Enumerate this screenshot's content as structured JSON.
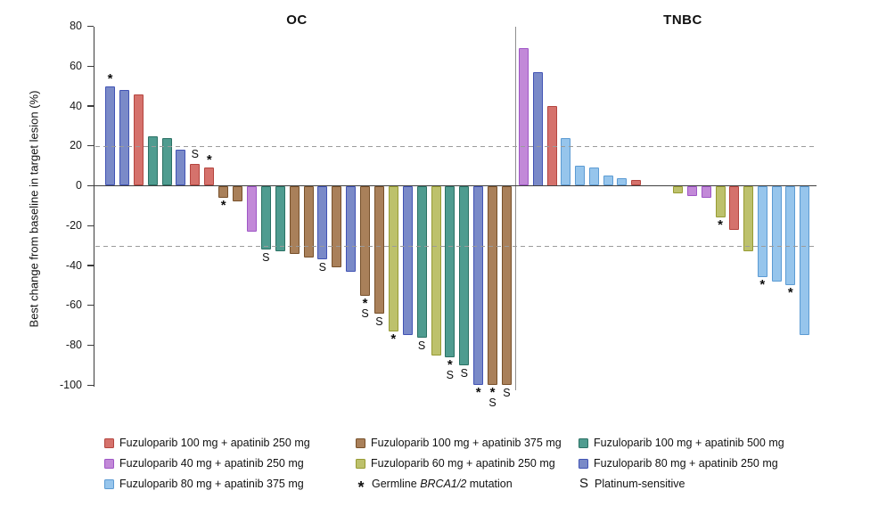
{
  "colors": {
    "fuzu100_apa250": {
      "fill": "#D5726C",
      "border": "#B4453F"
    },
    "fuzu100_apa375": {
      "fill": "#A9805A",
      "border": "#77502A"
    },
    "fuzu100_apa500": {
      "fill": "#4F9C90",
      "border": "#2B7164"
    },
    "fuzu40_apa250": {
      "fill": "#C289D8",
      "border": "#9F56C6"
    },
    "fuzu60_apa250": {
      "fill": "#BDC16C",
      "border": "#979B33"
    },
    "fuzu80_apa250": {
      "fill": "#7A8AC8",
      "border": "#4153B4"
    },
    "fuzu80_apa375": {
      "fill": "#96C5EC",
      "border": "#5C9BD3"
    }
  },
  "chart_data": {
    "type": "bar",
    "title": "",
    "ylabel": "Best change from baseline in target lesion (%)",
    "ylim": [
      -100,
      80
    ],
    "yticks": [
      80,
      60,
      40,
      20,
      0,
      -20,
      -40,
      -60,
      -80,
      -100
    ],
    "reference_lines": [
      20,
      -30
    ],
    "grid": false,
    "marker_meanings": {
      "*": "Germline BRCA1/2 mutation",
      "S": "Platinum-sensitive"
    },
    "panels": [
      {
        "label": "OC",
        "bars": [
          {
            "value": 50,
            "group": "fuzu80_apa250",
            "mark": "*"
          },
          {
            "value": 48,
            "group": "fuzu80_apa250"
          },
          {
            "value": 46,
            "group": "fuzu100_apa250"
          },
          {
            "value": 25,
            "group": "fuzu100_apa500"
          },
          {
            "value": 24,
            "group": "fuzu100_apa500"
          },
          {
            "value": 18,
            "group": "fuzu80_apa250"
          },
          {
            "value": 11,
            "group": "fuzu100_apa250",
            "mark": "S"
          },
          {
            "value": 9,
            "group": "fuzu100_apa250",
            "mark": "*"
          },
          {
            "value": -6,
            "group": "fuzu100_apa375",
            "mark": "*"
          },
          {
            "value": -8,
            "group": "fuzu100_apa375"
          },
          {
            "value": -23,
            "group": "fuzu40_apa250"
          },
          {
            "value": -32,
            "group": "fuzu100_apa500",
            "mark": "S"
          },
          {
            "value": -33,
            "group": "fuzu100_apa500"
          },
          {
            "value": -34,
            "group": "fuzu100_apa375"
          },
          {
            "value": -36,
            "group": "fuzu100_apa375"
          },
          {
            "value": -37,
            "group": "fuzu80_apa250",
            "mark": "S"
          },
          {
            "value": -41,
            "group": "fuzu100_apa375"
          },
          {
            "value": -43,
            "group": "fuzu80_apa250"
          },
          {
            "value": -55,
            "group": "fuzu100_apa375",
            "mark": "*S"
          },
          {
            "value": -64,
            "group": "fuzu100_apa375",
            "mark": "S"
          },
          {
            "value": -73,
            "group": "fuzu60_apa250",
            "mark": "*"
          },
          {
            "value": -75,
            "group": "fuzu80_apa250"
          },
          {
            "value": -76,
            "group": "fuzu100_apa500",
            "mark": "S"
          },
          {
            "value": -85,
            "group": "fuzu60_apa250"
          },
          {
            "value": -86,
            "group": "fuzu100_apa500",
            "mark": "*S"
          },
          {
            "value": -90,
            "group": "fuzu100_apa500",
            "mark": "S"
          },
          {
            "value": -100,
            "group": "fuzu80_apa250",
            "mark": "*"
          },
          {
            "value": -100,
            "group": "fuzu100_apa375",
            "mark": "*S"
          },
          {
            "value": -100,
            "group": "fuzu100_apa375",
            "mark": "S"
          }
        ]
      },
      {
        "label": "TNBC",
        "bars": [
          {
            "value": 69,
            "group": "fuzu40_apa250"
          },
          {
            "value": 57,
            "group": "fuzu80_apa250"
          },
          {
            "value": 40,
            "group": "fuzu100_apa250"
          },
          {
            "value": 24,
            "group": "fuzu80_apa375"
          },
          {
            "value": 10,
            "group": "fuzu80_apa375"
          },
          {
            "value": 9,
            "group": "fuzu80_apa375"
          },
          {
            "value": 5,
            "group": "fuzu80_apa375"
          },
          {
            "value": 4,
            "group": "fuzu80_apa375"
          },
          {
            "value": 3,
            "group": "fuzu100_apa250"
          },
          {
            "value": 0,
            "group": null
          },
          {
            "value": 0,
            "group": null
          },
          {
            "value": -4,
            "group": "fuzu60_apa250"
          },
          {
            "value": -5,
            "group": "fuzu40_apa250"
          },
          {
            "value": -6,
            "group": "fuzu40_apa250"
          },
          {
            "value": -16,
            "group": "fuzu60_apa250",
            "mark": "*"
          },
          {
            "value": -22,
            "group": "fuzu100_apa250"
          },
          {
            "value": -33,
            "group": "fuzu60_apa250"
          },
          {
            "value": -46,
            "group": "fuzu80_apa375",
            "mark": "*"
          },
          {
            "value": -48,
            "group": "fuzu80_apa375"
          },
          {
            "value": -50,
            "group": "fuzu80_apa375",
            "mark": "*"
          },
          {
            "value": -75,
            "group": "fuzu80_apa375"
          }
        ]
      }
    ]
  },
  "legend": {
    "f100a250": {
      "label": "Fuzuloparib 100 mg + apatinib 250 mg"
    },
    "f100a375": {
      "label": "Fuzuloparib 100 mg + apatinib 375 mg"
    },
    "f100a500": {
      "label": "Fuzuloparib 100 mg + apatinib 500 mg"
    },
    "f40a250": {
      "label": "Fuzuloparib 40 mg + apatinib 250 mg"
    },
    "f60a250": {
      "label": "Fuzuloparib 60 mg + apatinib 250 mg"
    },
    "f80a250": {
      "label": "Fuzuloparib 80 mg + apatinib 250 mg"
    },
    "f80a375": {
      "label": "Fuzuloparib 80 mg + apatinib 375 mg"
    },
    "brca": {
      "symbol": "*",
      "prefix": "Germline ",
      "italic": "BRCA1/2",
      "suffix": " mutation"
    },
    "platinum": {
      "symbol": "S",
      "label": "Platinum-sensitive"
    }
  }
}
